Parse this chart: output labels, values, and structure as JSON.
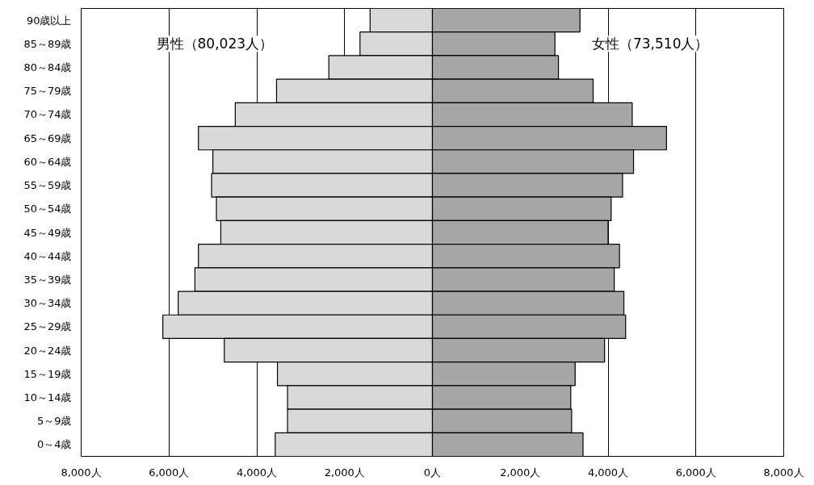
{
  "chart_data": {
    "type": "bar",
    "orientation": "horizontal",
    "categories": [
      "90歳以上",
      "85～89歳",
      "80～84歳",
      "75～79歳",
      "70～74歳",
      "65～69歳",
      "60～64歳",
      "55～59歳",
      "50～54歳",
      "45～49歳",
      "40～44歳",
      "35～39歳",
      "30～34歳",
      "25～29歳",
      "20～24歳",
      "15～19歳",
      "10～14歳",
      "5～9歳",
      "0～4歳"
    ],
    "series": [
      {
        "name": "男性（80,023人）",
        "color": "#d9d9d9",
        "values": [
          -1420,
          -1650,
          -2360,
          -3550,
          -4490,
          -5330,
          -5000,
          -5030,
          -4920,
          -4820,
          -5330,
          -5410,
          -5790,
          -6140,
          -4740,
          -3530,
          -3300,
          -3300,
          -3580
        ]
      },
      {
        "name": "女性（73,510人）",
        "color": "#a6a6a6",
        "values": [
          3360,
          2790,
          2870,
          3660,
          4550,
          5330,
          4580,
          4330,
          4070,
          4000,
          4260,
          4140,
          4360,
          4400,
          3920,
          3250,
          3150,
          3170,
          3430
        ]
      }
    ],
    "xlim": [
      -8000,
      8000
    ],
    "xticks": [
      {
        "value": -8000,
        "label": "8,000人"
      },
      {
        "value": -6000,
        "label": "6,000人"
      },
      {
        "value": -4000,
        "label": "4,000人"
      },
      {
        "value": -2000,
        "label": "2,000人"
      },
      {
        "value": 0,
        "label": "0人"
      },
      {
        "value": 2000,
        "label": "2,000人"
      },
      {
        "value": 4000,
        "label": "4,000人"
      },
      {
        "value": 6000,
        "label": "6,000人"
      },
      {
        "value": 8000,
        "label": "8,000人"
      }
    ],
    "grid": "x",
    "legend": false,
    "stacked": true
  }
}
